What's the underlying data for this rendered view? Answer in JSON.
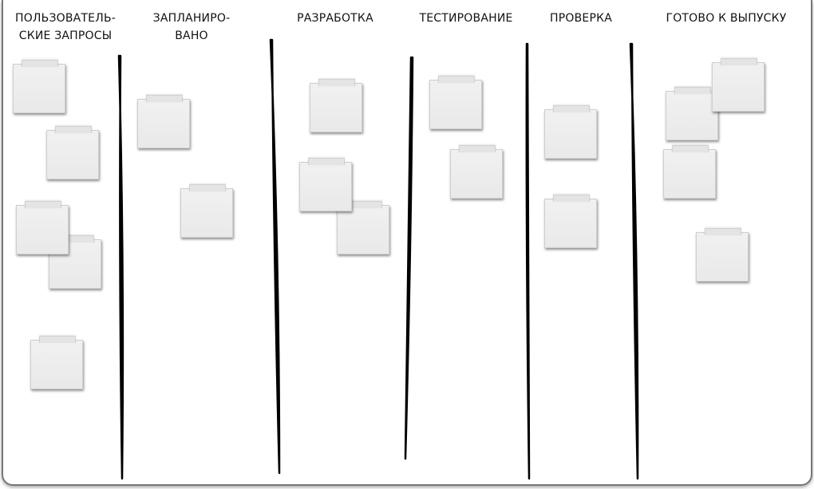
{
  "columns": [
    {
      "title": "ПОЛЬЗОВАТЕЛЬ-\nСКИЕ ЗАПРОСЫ"
    },
    {
      "title": "ЗАПЛАНИРО-\nВАНО"
    },
    {
      "title": "РАЗРАБОТКА"
    },
    {
      "title": "ТЕСТИРОВАНИЕ"
    },
    {
      "title": "ПРОВЕРКА"
    },
    {
      "title": "ГОТОВО К ВЫПУСКУ"
    }
  ]
}
